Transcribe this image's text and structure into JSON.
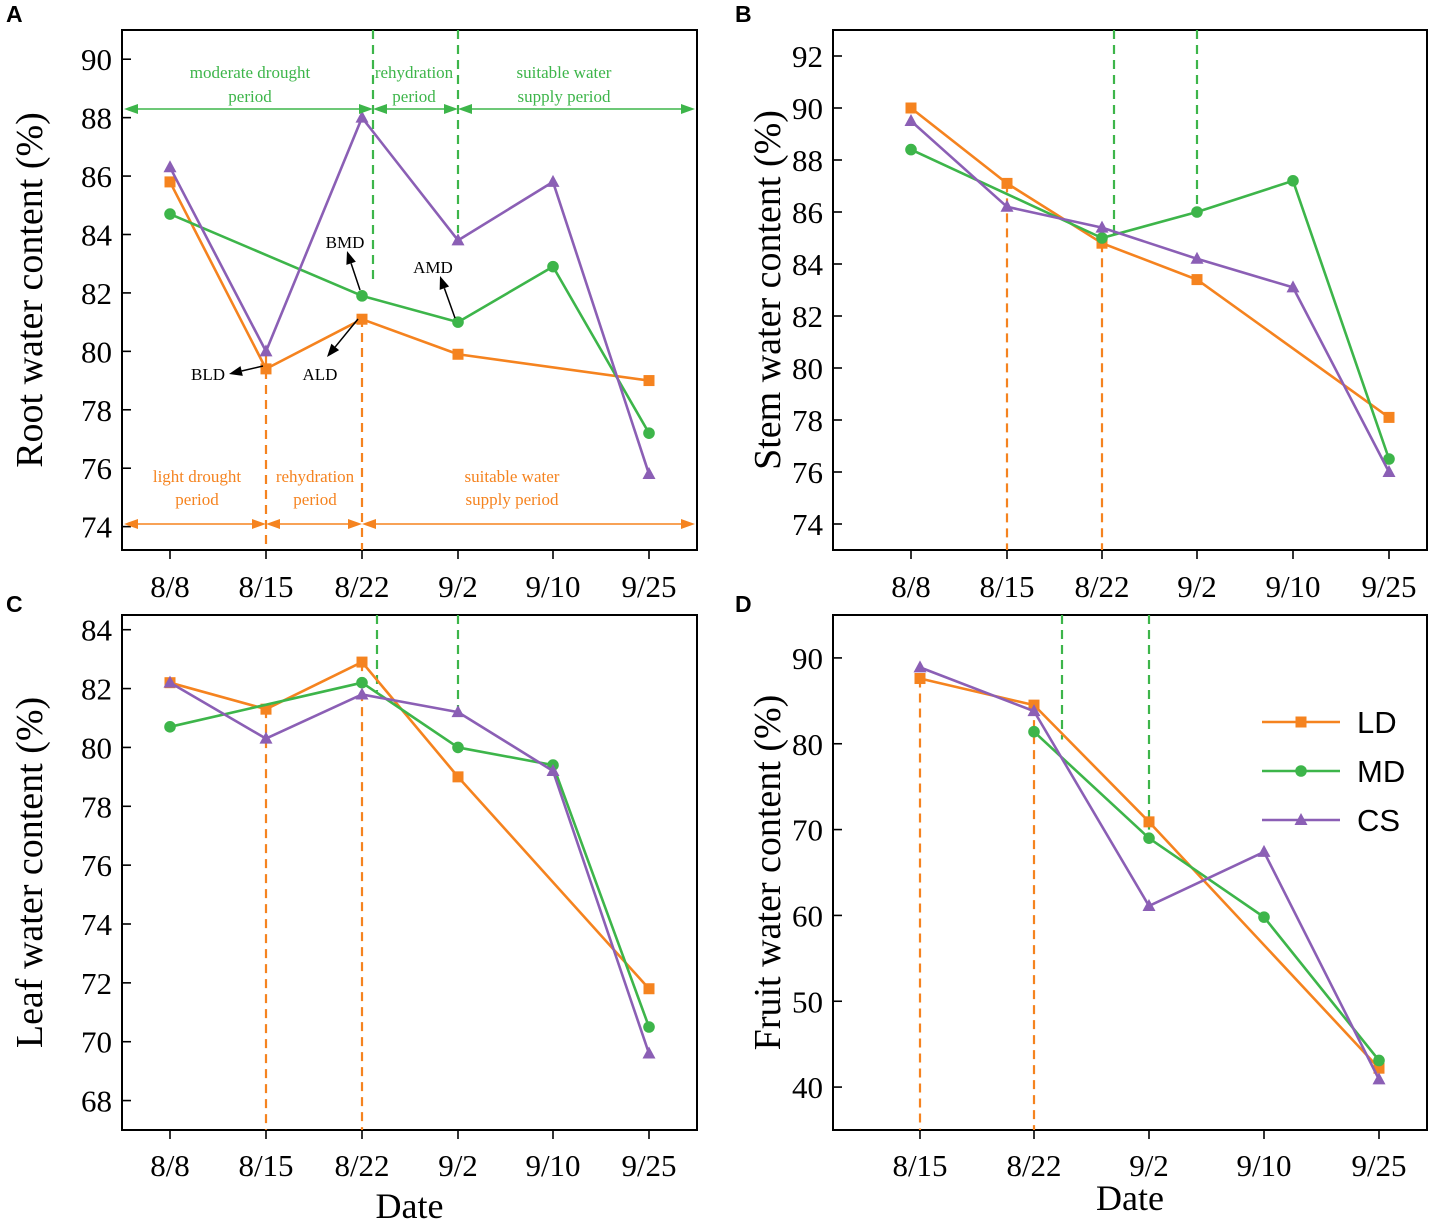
{
  "colors": {
    "LD": "#f5831f",
    "MD": "#3db54a",
    "CS": "#8b5fb5",
    "text": "#000000"
  },
  "chart_data": [
    {
      "panel": "A",
      "type": "line",
      "categories": [
        "8/8",
        "8/15",
        "8/22",
        "9/2",
        "9/10",
        "9/25"
      ],
      "xlabel": "",
      "ylabel": "Root water content (%)",
      "ylim": [
        73.2,
        91
      ],
      "yticks": [
        74,
        76,
        78,
        80,
        82,
        84,
        86,
        88,
        90
      ],
      "series": [
        {
          "name": "LD",
          "values": [
            85.8,
            79.4,
            81.1,
            79.9,
            null,
            79.0
          ]
        },
        {
          "name": "MD",
          "values": [
            84.7,
            null,
            81.9,
            81.0,
            82.9,
            77.2
          ]
        },
        {
          "name": "CS",
          "values": [
            86.3,
            80.0,
            88.0,
            83.8,
            85.8,
            75.8
          ]
        }
      ],
      "annotations": {
        "green_periods": [
          {
            "lines": [
              "moderate drought",
              "period"
            ]
          },
          {
            "lines": [
              "rehydration",
              "period"
            ]
          },
          {
            "lines": [
              "suitable water",
              "supply period"
            ]
          }
        ],
        "orange_periods": [
          {
            "lines": [
              "light drought",
              "period"
            ]
          },
          {
            "lines": [
              "rehydration",
              "period"
            ]
          },
          {
            "lines": [
              "suitable water",
              "supply period"
            ]
          }
        ],
        "points": [
          "BMD",
          "AMD",
          "BLD",
          "ALD"
        ]
      }
    },
    {
      "panel": "B",
      "type": "line",
      "categories": [
        "8/8",
        "8/15",
        "8/22",
        "9/2",
        "9/10",
        "9/25"
      ],
      "xlabel": "",
      "ylabel": "Stem water content (%)",
      "ylim": [
        73,
        93
      ],
      "yticks": [
        74,
        76,
        78,
        80,
        82,
        84,
        86,
        88,
        90,
        92
      ],
      "series": [
        {
          "name": "LD",
          "values": [
            90.0,
            87.1,
            84.8,
            83.4,
            null,
            78.1
          ]
        },
        {
          "name": "MD",
          "values": [
            88.4,
            null,
            85.0,
            86.0,
            87.2,
            76.5
          ]
        },
        {
          "name": "CS",
          "values": [
            89.5,
            86.2,
            85.4,
            84.2,
            83.1,
            76.0
          ]
        }
      ]
    },
    {
      "panel": "C",
      "type": "line",
      "categories": [
        "8/8",
        "8/15",
        "8/22",
        "9/2",
        "9/10",
        "9/25"
      ],
      "xlabel": "Date",
      "ylabel": "Leaf water content (%)",
      "ylim": [
        67,
        84.5
      ],
      "yticks": [
        68,
        70,
        72,
        74,
        76,
        78,
        80,
        82,
        84
      ],
      "series": [
        {
          "name": "LD",
          "values": [
            82.2,
            81.3,
            82.9,
            79.0,
            null,
            71.8
          ]
        },
        {
          "name": "MD",
          "values": [
            80.7,
            null,
            82.2,
            80.0,
            79.4,
            70.5
          ]
        },
        {
          "name": "CS",
          "values": [
            82.2,
            80.3,
            81.8,
            81.2,
            79.2,
            69.6
          ]
        }
      ]
    },
    {
      "panel": "D",
      "type": "line",
      "categories": [
        "8/15",
        "8/22",
        "9/2",
        "9/10",
        "9/25"
      ],
      "xlabel": "Date",
      "ylabel": "Fruit water content (%)",
      "ylim": [
        35,
        95
      ],
      "yticks": [
        40,
        50,
        60,
        70,
        80,
        90
      ],
      "series": [
        {
          "name": "LD",
          "values": [
            87.6,
            84.5,
            70.9,
            null,
            42.2
          ]
        },
        {
          "name": "MD",
          "values": [
            null,
            81.4,
            69.0,
            59.8,
            43.1
          ]
        },
        {
          "name": "CS",
          "values": [
            88.9,
            83.8,
            61.1,
            67.4,
            40.9
          ]
        }
      ],
      "legend": {
        "position": "right",
        "entries": [
          "LD",
          "MD",
          "CS"
        ]
      }
    }
  ]
}
